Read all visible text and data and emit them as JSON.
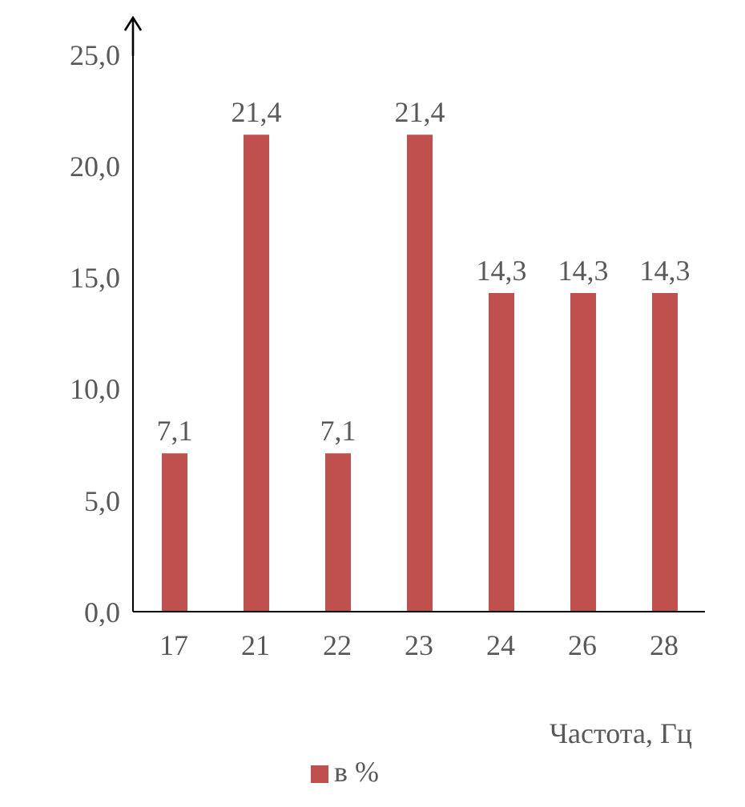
{
  "chart_data": {
    "type": "bar",
    "xlabel": "Частота, Гц",
    "categories": [
      "17",
      "21",
      "22",
      "23",
      "24",
      "26",
      "28"
    ],
    "series": [
      {
        "name": "в %",
        "color": "#c0504d",
        "values": [
          7.1,
          21.4,
          7.1,
          21.4,
          14.3,
          14.3,
          14.3
        ],
        "value_labels": [
          "7,1",
          "21,4",
          "7,1",
          "21,4",
          "14,3",
          "14,3",
          "14,3"
        ]
      }
    ],
    "ylim": [
      0,
      25
    ],
    "yticks": [
      {
        "value": 0,
        "label": "0,0"
      },
      {
        "value": 5,
        "label": "5,0"
      },
      {
        "value": 10,
        "label": "10,0"
      },
      {
        "value": 15,
        "label": "15,0"
      },
      {
        "value": 20,
        "label": "20,0"
      },
      {
        "value": 25,
        "label": "25,0"
      }
    ],
    "grid": false,
    "legend": "bottom"
  }
}
